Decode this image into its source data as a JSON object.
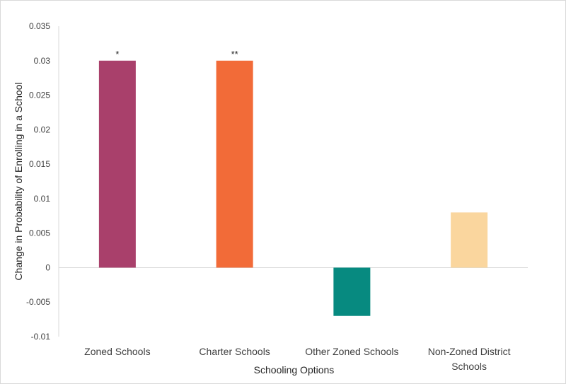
{
  "chart_data": {
    "type": "bar",
    "categories": [
      "Zoned Schools",
      "Charter Schools",
      "Other Zoned Schools",
      "Non-Zoned District Schools"
    ],
    "category_lines": [
      [
        "Zoned Schools"
      ],
      [
        "Charter Schools"
      ],
      [
        "Other Zoned Schools"
      ],
      [
        "Non-Zoned District",
        "Schools"
      ]
    ],
    "values": [
      0.03,
      0.03,
      -0.007,
      0.008
    ],
    "colors": [
      "#a9406b",
      "#f26b38",
      "#078a80",
      "#fad69e"
    ],
    "annotations": [
      "*",
      "**",
      "",
      ""
    ],
    "xlabel": "Schooling Options",
    "ylabel": "Change in Probability of Enrolling in a School",
    "ylim": [
      -0.01,
      0.035
    ],
    "yticks": [
      "0.035",
      "0.03",
      "0.025",
      "0.02",
      "0.015",
      "0.01",
      "0.005",
      "0",
      "-0.005",
      "-0.01"
    ],
    "ytick_values": [
      0.035,
      0.03,
      0.025,
      0.02,
      0.015,
      0.01,
      0.005,
      0,
      -0.005,
      -0.01
    ],
    "grid": false,
    "legend": "none"
  }
}
